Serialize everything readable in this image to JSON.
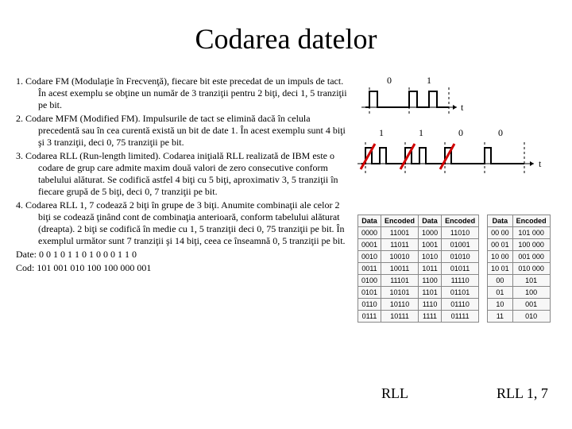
{
  "title": "Codarea datelor",
  "paragraphs": [
    "1. Codare FM (Modulaţie în Frecvenţă), fiecare bit este precedat de un impuls de tact. În acest exemplu se obţine un număr de 3 tranziţii pentru 2 biţi, deci 1, 5 tranziţii pe bit.",
    "2. Codare MFM (Modified FM). Impulsurile de tact se elimină dacă în celula precedentă sau în cea curentă există un bit de date 1. În acest exemplu sunt 4 biţi şi 3 tranziţii, deci 0, 75 tranziţii pe bit.",
    "3. Codarea RLL (Run-length limited). Codarea iniţială RLL realizată de IBM este o codare de grup care admite maxim două valori de zero consecutive conform tabelului alăturat. Se codifică astfel 4 biţi cu 5 biţi, aproximativ 3, 5 tranziţii în fiecare grupă de 5 biţi, deci 0, 7 tranziţii pe bit.",
    "4. Codarea RLL 1, 7 codează 2 biţi în grupe de 3 biţi. Anumite combinaţii ale celor 2 biţi se codează ţinând cont de combinaţia anterioară, conform tabelului alăturat (dreapta). 2 biţi se codifică în medie cu 1, 5 tranziţii deci 0, 75 tranziţii pe bit. În exemplul următor sunt 7 tranziţii şi 14 biţi, ceea ce înseamnă 0, 5 tranziţii pe bit."
  ],
  "footer_lines": [
    "Date: 0 0  1 0  1 1   0 1   0 0   0 1  1 0",
    "Cod: 101  001 010 100  100 000  001"
  ],
  "fm": {
    "bits": [
      "0",
      "1"
    ],
    "t_label": "t",
    "colors": {
      "line": "#000",
      "dash": "#000"
    }
  },
  "mfm": {
    "bits": [
      "1",
      "1",
      "0",
      "0"
    ],
    "t_label": "t",
    "colors": {
      "line": "#000",
      "dash": "#000",
      "cross": "#d00000"
    }
  },
  "rll_table": {
    "caption": "RLL",
    "headers": [
      "Data",
      "Encoded",
      "Data",
      "Encoded"
    ],
    "rows": [
      [
        "0000",
        "11001",
        "1000",
        "11010"
      ],
      [
        "0001",
        "11011",
        "1001",
        "01001"
      ],
      [
        "0010",
        "10010",
        "1010",
        "01010"
      ],
      [
        "0011",
        "10011",
        "1011",
        "01011"
      ],
      [
        "0100",
        "11101",
        "1100",
        "11110"
      ],
      [
        "0101",
        "10101",
        "1101",
        "01101"
      ],
      [
        "0110",
        "10110",
        "1110",
        "01110"
      ],
      [
        "0111",
        "10111",
        "1111",
        "01111"
      ]
    ]
  },
  "rll17_table": {
    "caption": "RLL 1, 7",
    "headers": [
      "Data",
      "Encoded"
    ],
    "rows": [
      [
        "00 00",
        "101 000"
      ],
      [
        "00 01",
        "100 000"
      ],
      [
        "10 00",
        "001 000"
      ],
      [
        "10 01",
        "010 000"
      ],
      [
        "00",
        "101"
      ],
      [
        "01",
        "100"
      ],
      [
        "10",
        "001"
      ],
      [
        "11",
        "010"
      ]
    ]
  },
  "style": {
    "title_fontsize": 36,
    "body_fontsize": 12,
    "table_fontsize": 9,
    "caption_fontsize": 18,
    "background": "#ffffff",
    "text_color": "#000000",
    "table_border": "#888888",
    "table_bg": "#f7f7f7"
  }
}
